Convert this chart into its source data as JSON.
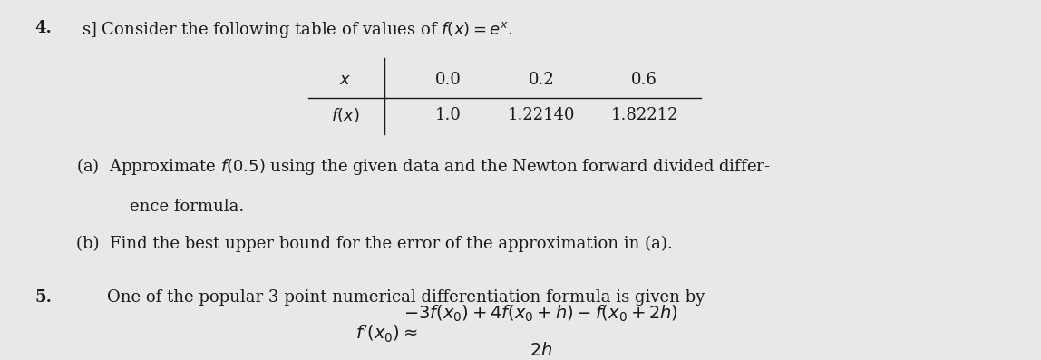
{
  "background_color": "#e8e8e8",
  "text_color": "#1a1a1a",
  "fig_width": 11.48,
  "fig_height": 3.97,
  "item4_number": "4.",
  "item4_text": "s] Consider the following table of values of $f(x) = e^x$.",
  "table_x_label": "$x$",
  "table_x_values": [
    "0.0",
    "0.2",
    "0.6"
  ],
  "table_fx_label": "$f(x)$",
  "table_fx_values": [
    "1.0",
    "1.22140",
    "1.82212"
  ],
  "part_a_line1": "(a)  Approximate $f(0.5)$ using the given data and the Newton forward divided differ-",
  "part_a_line2": "ence formula.",
  "part_b_text": "(b)  Find the best upper bound for the error of the approximation in (a).",
  "item5_number": "5.",
  "item5_text": "One of the popular 3-point numerical differentiation formula is given by",
  "formula_numerator": "$-3f(x_0) + 4f(x_0 + h) - f(x_0 + 2h)$",
  "formula_denominator": "$2h$",
  "formula_lhs": "$f^{\\prime}(x_0) \\approx$",
  "main_fontsize": 13,
  "table_fontsize": 13
}
